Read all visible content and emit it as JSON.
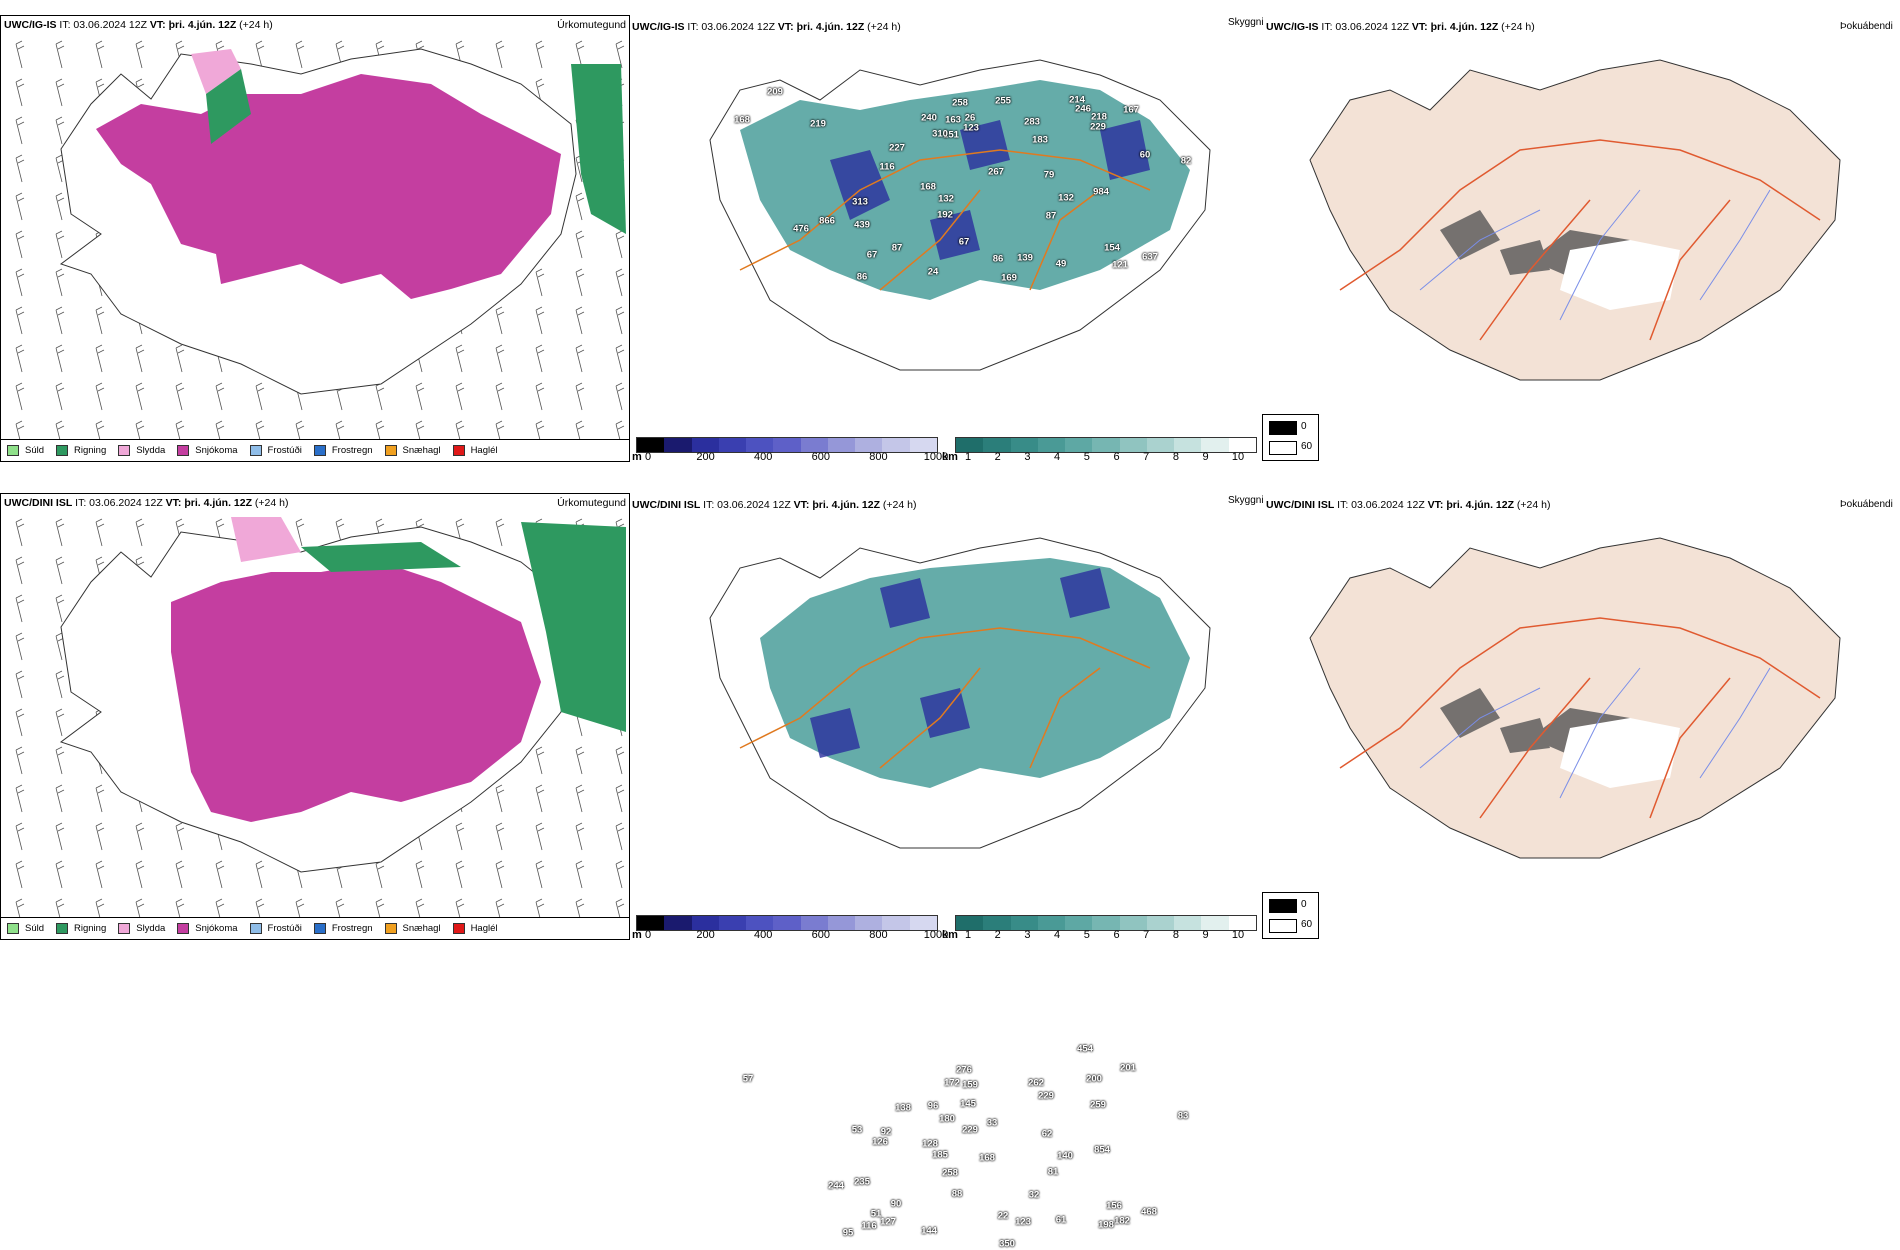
{
  "rows": [
    {
      "model": "UWC/IG-IS",
      "header_rest": " IT: 03.06.2024 12Z ",
      "vt_label": "VT: þri. 4.jún. 12Z",
      "lead": " (+24 h)",
      "panel_titles": {
        "precip": "Úrkomutegund",
        "visibility": "Skyggni",
        "fog": "Þokuábendi"
      },
      "cloud_labels": [
        "209",
        "168",
        "219",
        "227",
        "240",
        "163",
        "26",
        "255",
        "214",
        "183",
        "283",
        "246",
        "167",
        "229",
        "151",
        "123",
        "258",
        "218",
        "310",
        "116",
        "168",
        "267",
        "79",
        "60",
        "82",
        "313",
        "132",
        "87",
        "132",
        "984",
        "476",
        "866",
        "439",
        "192",
        "67",
        "87",
        "67",
        "86",
        "24",
        "86",
        "139",
        "49",
        "154",
        "637",
        "121",
        "169"
      ]
    },
    {
      "model": "UWC/DINI ISL",
      "header_rest": " IT: 03.06.2024 12Z ",
      "vt_label": "VT: þri. 4.jún. 12Z",
      "lead": " (+24 h)",
      "panel_titles": {
        "precip": "Úrkomutegund",
        "visibility": "Skyggni",
        "fog": "Þokuábendi"
      },
      "cloud_labels": [
        "57",
        "138",
        "172",
        "276",
        "159",
        "262",
        "454",
        "229",
        "200",
        "201",
        "83",
        "53",
        "92",
        "96",
        "180",
        "145",
        "33",
        "229",
        "259",
        "128",
        "185",
        "126",
        "168",
        "62",
        "140",
        "854",
        "244",
        "235",
        "258",
        "88",
        "90",
        "32",
        "81",
        "51",
        "116",
        "127",
        "95",
        "144",
        "22",
        "123",
        "350",
        "61",
        "156",
        "198",
        "182",
        "468"
      ]
    }
  ],
  "precip_legend": [
    {
      "label": "Súld",
      "color": "#8fe08a"
    },
    {
      "label": "Rigning",
      "color": "#2e9960"
    },
    {
      "label": "Slydda",
      "color": "#f0a8d8"
    },
    {
      "label": "Snjókoma",
      "color": "#c43ea0"
    },
    {
      "label": "Frostúði",
      "color": "#8fbde8"
    },
    {
      "label": "Frostregn",
      "color": "#2a6fc9"
    },
    {
      "label": "Snæhagl",
      "color": "#f0a020"
    },
    {
      "label": "Haglél",
      "color": "#e01818"
    }
  ],
  "height_scale": {
    "unit": "m",
    "ticks": [
      "0",
      "200",
      "400",
      "600",
      "800",
      "1000"
    ]
  },
  "vis_scale": {
    "unit": "km",
    "ticks": [
      "1",
      "2",
      "3",
      "4",
      "5",
      "6",
      "7",
      "8",
      "9",
      "10"
    ]
  },
  "fog_legend": {
    "high": "0",
    "low": "60"
  }
}
